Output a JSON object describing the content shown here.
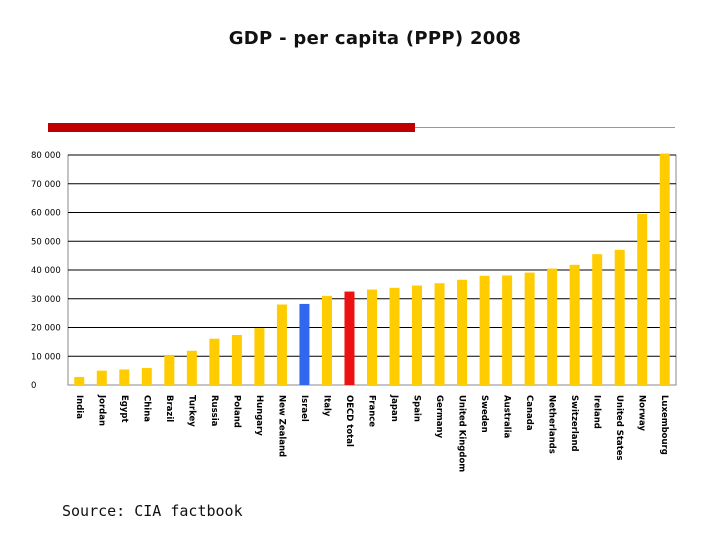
{
  "slide": {
    "title": "GDP - per capita (PPP) 2008",
    "source": "Source: CIA factbook"
  },
  "colors": {
    "default": "#ffcc00",
    "highlight_oecd": "#ee1111",
    "highlight_israel": "#3366ee",
    "accent": "#c00000",
    "grid": "#000000"
  },
  "chart_data": {
    "type": "bar",
    "title": "GDP - per capita (PPP) 2008",
    "xlabel": "",
    "ylabel": "",
    "ylim": [
      0,
      80000
    ],
    "yticks": [
      0,
      10000,
      20000,
      30000,
      40000,
      50000,
      60000,
      70000,
      80000
    ],
    "ytick_labels": [
      "0",
      "10 000",
      "20 000",
      "30 000",
      "40 000",
      "50 000",
      "60 000",
      "70 000",
      "80 000"
    ],
    "grid": true,
    "categories": [
      "India",
      "Jordan",
      "Egypt",
      "China",
      "Brazil",
      "Turkey",
      "Russia",
      "Poland",
      "Hungary",
      "New Zealand",
      "Israel",
      "Italy",
      "OECD total",
      "France",
      "Japan",
      "Spain",
      "Germany",
      "United Kingdom",
      "Sweden",
      "Australia",
      "Canada",
      "Netherlands",
      "Switzerland",
      "Ireland",
      "United States",
      "Norway",
      "Luxembourg"
    ],
    "values": [
      2800,
      5000,
      5400,
      5900,
      10100,
      11900,
      16100,
      17400,
      19800,
      28000,
      28200,
      31000,
      32500,
      33200,
      33800,
      34600,
      35400,
      36600,
      38000,
      38100,
      39100,
      40500,
      41800,
      45500,
      47000,
      59500,
      80500
    ],
    "highlights": {
      "Israel": "highlight_israel",
      "OECD total": "highlight_oecd"
    }
  }
}
